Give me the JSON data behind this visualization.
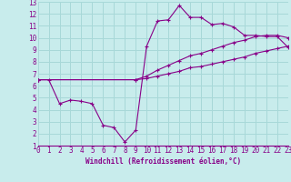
{
  "xlabel": "Windchill (Refroidissement éolien,°C)",
  "bg_color": "#c8ecec",
  "grid_color": "#a8d8d8",
  "line_color": "#880088",
  "xmin": 0,
  "xmax": 23,
  "ymin": 1,
  "ymax": 13,
  "line1_x": [
    0,
    1,
    2,
    3,
    4,
    5,
    6,
    7,
    8,
    9,
    10,
    11,
    12,
    13,
    14,
    15,
    16,
    17,
    18,
    19,
    20,
    21,
    22,
    23
  ],
  "line1_y": [
    6.5,
    6.5,
    4.5,
    4.8,
    4.7,
    4.5,
    2.7,
    2.5,
    1.3,
    2.3,
    9.3,
    11.4,
    11.5,
    12.7,
    11.7,
    11.7,
    11.1,
    11.2,
    10.9,
    10.2,
    10.2,
    10.1,
    10.1,
    9.2
  ],
  "line2_x": [
    0,
    9,
    10,
    11,
    12,
    13,
    14,
    15,
    16,
    17,
    18,
    19,
    20,
    21,
    22,
    23
  ],
  "line2_y": [
    6.5,
    6.5,
    6.8,
    7.3,
    7.7,
    8.1,
    8.5,
    8.7,
    9.0,
    9.3,
    9.6,
    9.8,
    10.1,
    10.2,
    10.2,
    10.0
  ],
  "line3_x": [
    0,
    9,
    10,
    11,
    12,
    13,
    14,
    15,
    16,
    17,
    18,
    19,
    20,
    21,
    22,
    23
  ],
  "line3_y": [
    6.5,
    6.5,
    6.6,
    6.8,
    7.0,
    7.2,
    7.5,
    7.6,
    7.8,
    8.0,
    8.2,
    8.4,
    8.7,
    8.9,
    9.1,
    9.3
  ]
}
